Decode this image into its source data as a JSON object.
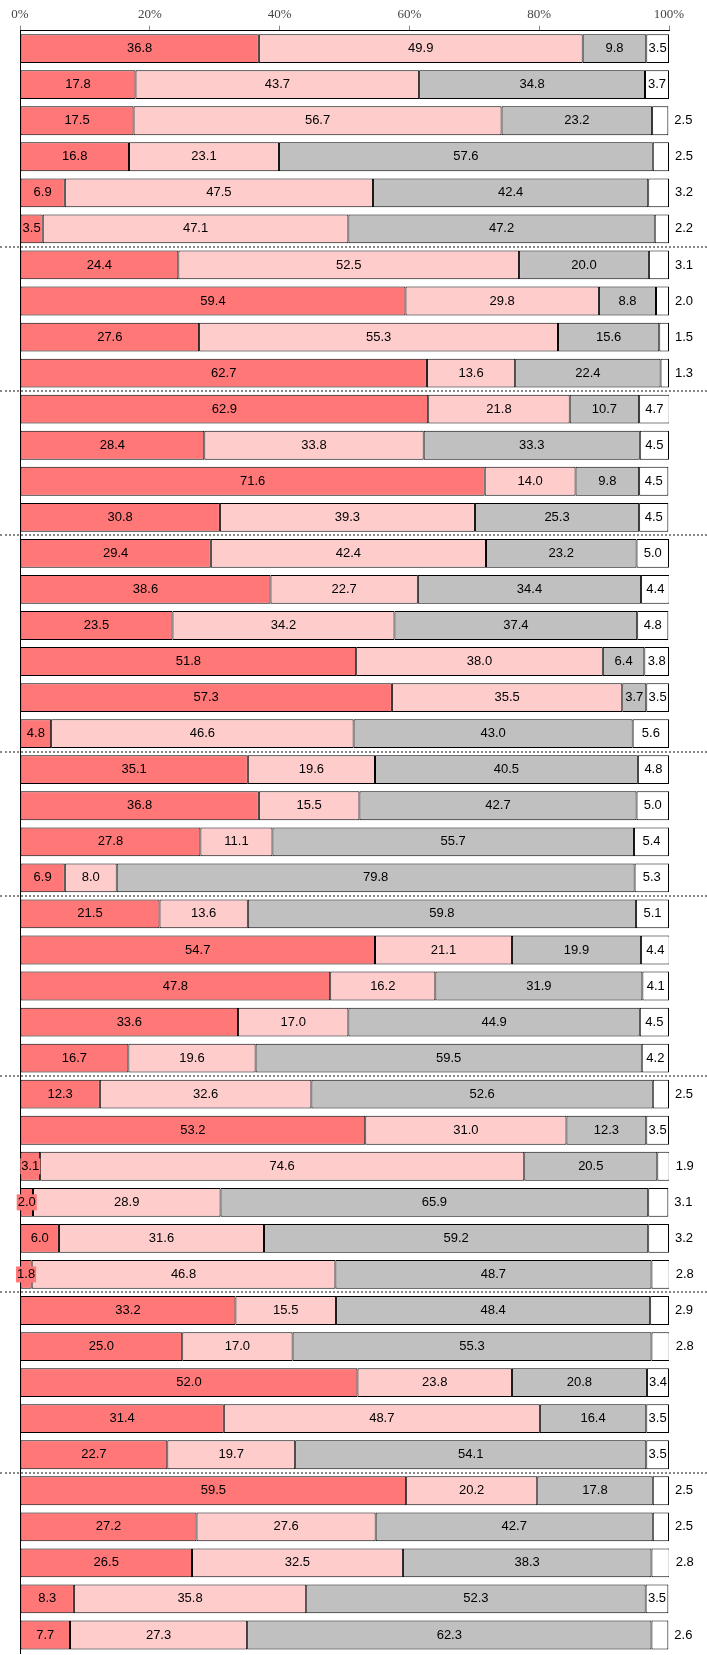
{
  "chart_data": {
    "type": "bar",
    "orientation": "horizontal",
    "stacked": true,
    "legend": false,
    "grid": false,
    "categories": [
      null,
      null,
      null,
      null,
      null,
      null,
      null,
      null,
      null,
      null,
      null,
      null,
      null,
      null,
      null,
      null,
      null,
      null,
      null,
      null,
      null,
      null,
      null,
      null,
      null,
      null,
      null,
      null,
      null,
      null,
      null,
      null,
      null,
      null,
      null,
      null,
      null,
      null,
      null,
      null,
      null,
      null,
      null,
      null,
      null
    ],
    "xlim": [
      0,
      100
    ],
    "xticks": [
      {
        "value": 0,
        "label": "0%"
      },
      {
        "value": 20,
        "label": "20%"
      },
      {
        "value": 40,
        "label": "40%"
      },
      {
        "value": 60,
        "label": "60%"
      },
      {
        "value": 80,
        "label": "80%"
      },
      {
        "value": 100,
        "label": "100%"
      }
    ],
    "series": [
      {
        "color": "#ff7777",
        "values": [
          36.8,
          17.8,
          17.5,
          16.8,
          6.9,
          3.5,
          24.4,
          59.4,
          27.6,
          62.7,
          62.9,
          28.4,
          71.6,
          30.8,
          29.4,
          38.6,
          23.5,
          51.8,
          57.3,
          4.8,
          35.1,
          36.8,
          27.8,
          6.9,
          21.5,
          54.7,
          47.8,
          33.6,
          16.7,
          12.3,
          53.2,
          3.1,
          2.0,
          6.0,
          1.8,
          33.2,
          25.0,
          52.0,
          31.4,
          22.7,
          59.5,
          27.2,
          26.5,
          8.3,
          7.7
        ],
        "value_labels": [
          "36.8",
          "17.8",
          "17.5",
          "16.8",
          "6.9",
          "3.5",
          "24.4",
          "59.4",
          "27.6",
          "62.7",
          "62.9",
          "28.4",
          "71.6",
          "30.8",
          "29.4",
          "38.6",
          "23.5",
          "51.8",
          "57.3",
          "4.8",
          "35.1",
          "36.8",
          "27.8",
          "6.9",
          "21.5",
          "54.7",
          "47.8",
          "33.6",
          "16.7",
          "12.3",
          "53.2",
          "3.1",
          "2.0",
          "6.0",
          "1.8",
          "33.2",
          "25.0",
          "52.0",
          "31.4",
          "22.7",
          "59.5",
          "27.2",
          "26.5",
          "8.3",
          "7.7"
        ]
      },
      {
        "color": "#ffcccc",
        "values": [
          49.9,
          43.7,
          56.7,
          23.1,
          47.5,
          47.1,
          52.5,
          29.8,
          55.3,
          13.6,
          21.8,
          33.8,
          14.0,
          39.3,
          42.4,
          22.7,
          34.2,
          38.0,
          35.5,
          46.6,
          19.6,
          15.5,
          11.1,
          8.0,
          13.6,
          21.1,
          16.2,
          17.0,
          19.6,
          32.6,
          31.0,
          74.6,
          28.9,
          31.6,
          46.8,
          15.5,
          17.0,
          23.8,
          48.7,
          19.7,
          20.2,
          27.6,
          32.5,
          35.8,
          27.3
        ],
        "value_labels": [
          "49.9",
          "43.7",
          "56.7",
          "23.1",
          "47.5",
          "47.1",
          "52.5",
          "29.8",
          "55.3",
          "13.6",
          "21.8",
          "33.8",
          "14.0",
          "39.3",
          "42.4",
          "22.7",
          "34.2",
          "38.0",
          "35.5",
          "46.6",
          "19.6",
          "15.5",
          "11.1",
          "8.0",
          "13.6",
          "21.1",
          "16.2",
          "17.0",
          "19.6",
          "32.6",
          "31.0",
          "74.6",
          "28.9",
          "31.6",
          "46.8",
          "15.5",
          "17.0",
          "23.8",
          "48.7",
          "19.7",
          "20.2",
          "27.6",
          "32.5",
          "35.8",
          "27.3"
        ]
      },
      {
        "color": "#c0c0c0",
        "values": [
          9.8,
          34.8,
          23.2,
          57.6,
          42.4,
          47.2,
          20.0,
          8.8,
          15.6,
          22.4,
          10.7,
          33.3,
          9.8,
          25.3,
          23.2,
          34.4,
          37.4,
          6.4,
          3.7,
          43.0,
          40.5,
          42.7,
          55.7,
          79.8,
          59.8,
          19.9,
          31.9,
          44.9,
          59.5,
          52.6,
          12.3,
          20.5,
          65.9,
          59.2,
          48.7,
          48.4,
          55.3,
          20.8,
          16.4,
          54.1,
          17.8,
          42.7,
          38.3,
          52.3,
          62.3
        ],
        "value_labels": [
          "9.8",
          "34.8",
          "23.2",
          "57.6",
          "42.4",
          "47.2",
          "20.0",
          "8.8",
          "15.6",
          "22.4",
          "10.7",
          "33.3",
          "9.8",
          "25.3",
          "23.2",
          "34.4",
          "37.4",
          "6.4",
          "3.7",
          "43.0",
          "40.5",
          "42.7",
          "55.7",
          "79.8",
          "59.8",
          "19.9",
          "31.9",
          "44.9",
          "59.5",
          "52.6",
          "12.3",
          "20.5",
          "65.9",
          "59.2",
          "48.7",
          "48.4",
          "55.3",
          "20.8",
          "16.4",
          "54.1",
          "17.8",
          "42.7",
          "38.3",
          "52.3",
          "62.3"
        ]
      },
      {
        "color": "#ffffff",
        "values": [
          3.5,
          3.7,
          2.5,
          2.5,
          3.2,
          2.2,
          3.1,
          2.0,
          1.5,
          1.3,
          4.7,
          4.5,
          4.5,
          4.5,
          5.0,
          4.4,
          4.8,
          3.8,
          3.5,
          5.6,
          4.8,
          5.0,
          5.4,
          5.3,
          5.1,
          4.4,
          4.1,
          4.5,
          4.2,
          2.5,
          3.5,
          1.9,
          3.1,
          3.2,
          2.8,
          2.9,
          2.8,
          3.4,
          3.5,
          3.5,
          2.5,
          2.5,
          2.8,
          3.5,
          2.6
        ],
        "value_labels": [
          "3.5",
          "3.7",
          "2.5",
          "2.5",
          "3.2",
          "2.2",
          "3.1",
          "2.0",
          "1.5",
          "1.3",
          "4.7",
          "4.5",
          "4.5",
          "4.5",
          "5.0",
          "4.4",
          "4.8",
          "3.8",
          "3.5",
          "5.6",
          "4.8",
          "5.0",
          "5.4",
          "5.3",
          "5.1",
          "4.4",
          "4.1",
          "4.5",
          "4.2",
          "2.5",
          "3.5",
          "1.9",
          "3.1",
          "3.2",
          "2.8",
          "2.9",
          "2.8",
          "3.4",
          "3.5",
          "3.5",
          "2.5",
          "2.5",
          "2.8",
          "3.5",
          "2.6"
        ]
      }
    ]
  }
}
